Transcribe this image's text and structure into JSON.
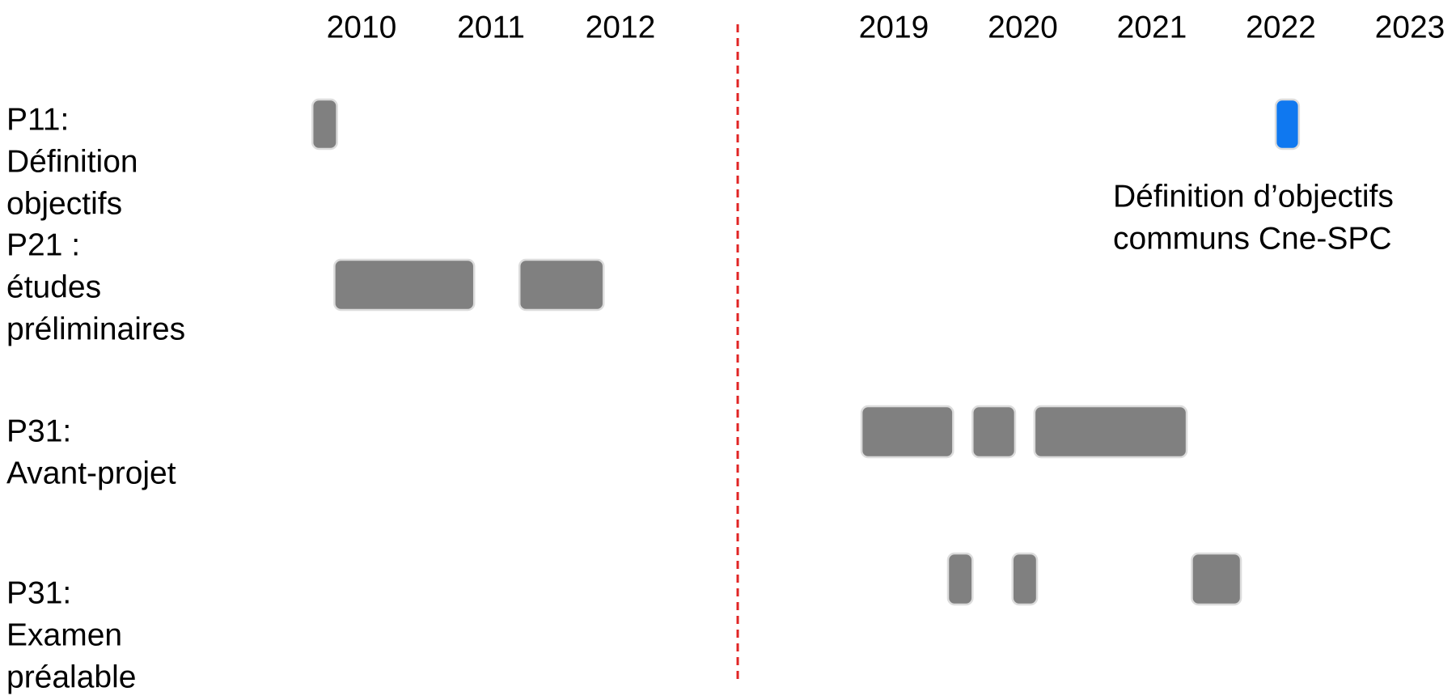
{
  "chart_data": {
    "type": "gantt",
    "x_ticks": [
      {
        "label": "2010",
        "value": 2010
      },
      {
        "label": "2011",
        "value": 2011
      },
      {
        "label": "2012",
        "value": 2012
      },
      {
        "label": "2019",
        "value": 2019
      },
      {
        "label": "2020",
        "value": 2020
      },
      {
        "label": "2021",
        "value": 2021
      },
      {
        "label": "2022",
        "value": 2022
      },
      {
        "label": "2023",
        "value": 2023
      }
    ],
    "axis_break_between": [
      2012,
      2019
    ],
    "segments": [
      {
        "range": [
          2009.7,
          2012.3
        ]
      },
      {
        "range": [
          2018.7,
          2023.55
        ]
      }
    ],
    "rows": [
      {
        "label_lines": [
          "P11:",
          "Définition",
          "objectifs"
        ]
      },
      {
        "label_lines": [
          "P21 :",
          "études",
          "préliminaires"
        ]
      },
      {
        "label_lines": [
          "P31:",
          "Avant-projet"
        ]
      },
      {
        "label_lines": [
          "P31:",
          "Examen",
          "préalable"
        ]
      }
    ],
    "bars": [
      {
        "row": 0,
        "start": 2009.62,
        "end": 2009.81,
        "color": "#808080"
      },
      {
        "row": 0,
        "start": 2021.96,
        "end": 2022.14,
        "color": "#0f78f0"
      },
      {
        "row": 1,
        "start": 2009.79,
        "end": 2010.87,
        "color": "#808080"
      },
      {
        "row": 1,
        "start": 2011.22,
        "end": 2011.87,
        "color": "#808080"
      },
      {
        "row": 2,
        "start": 2018.75,
        "end": 2019.46,
        "color": "#808080"
      },
      {
        "row": 2,
        "start": 2019.61,
        "end": 2019.94,
        "color": "#808080"
      },
      {
        "row": 2,
        "start": 2020.09,
        "end": 2021.27,
        "color": "#808080"
      },
      {
        "row": 3,
        "start": 2019.42,
        "end": 2019.61,
        "color": "#808080"
      },
      {
        "row": 3,
        "start": 2019.92,
        "end": 2020.11,
        "color": "#808080"
      },
      {
        "row": 3,
        "start": 2021.31,
        "end": 2021.69,
        "color": "#808080"
      }
    ],
    "annotations": [
      {
        "row": 0,
        "lines": [
          "Définition d’objectifs",
          "communs Cne-SPC"
        ]
      }
    ],
    "colors": {
      "bar": "#808080",
      "highlight_bar": "#0f78f0",
      "bar_border": "#dcdcdc",
      "break_line": "#e02424"
    }
  }
}
